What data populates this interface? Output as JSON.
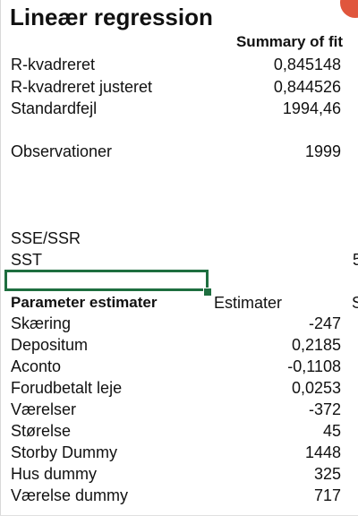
{
  "title": "Lineær regression",
  "summary": {
    "header": "Summary of fit",
    "rows": [
      {
        "label": "R-kvadreret",
        "value": "0,845148"
      },
      {
        "label": "R-kvadreret justeret",
        "value": "0,844526"
      },
      {
        "label": "Standardfejl",
        "value": "1994,46"
      }
    ]
  },
  "observations": {
    "label": "Observationer",
    "value": "1999"
  },
  "sums": {
    "sse_label": "SSE/SSR",
    "sst_label": "SST",
    "sst_edge": "5"
  },
  "params": {
    "header": "Parameter estimater",
    "col_estimate": "Estimater",
    "col_edge": "S",
    "rows": [
      {
        "label": "Skæring",
        "value": "-247"
      },
      {
        "label": "Depositum",
        "value": "0,2185"
      },
      {
        "label": "Aconto",
        "value": "-0,1108"
      },
      {
        "label": "Forudbetalt leje",
        "value": "0,0253"
      },
      {
        "label": "Værelser",
        "value": "-372"
      },
      {
        "label": "Størelse",
        "value": "45"
      },
      {
        "label": "Storby Dummy",
        "value": "1448"
      },
      {
        "label": "Hus dummy",
        "value": "325"
      },
      {
        "label": "Værelse dummy",
        "value": "717"
      }
    ]
  },
  "colors": {
    "selection": "#1e6e3f",
    "badge": "#e0563d"
  }
}
